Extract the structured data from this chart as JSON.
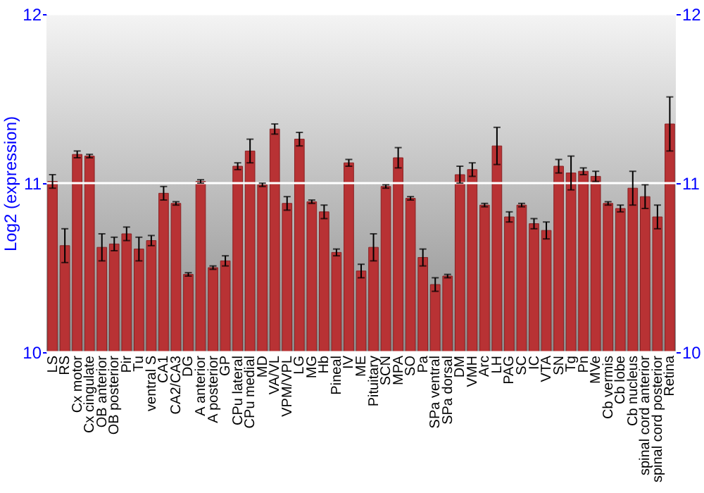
{
  "chart_data": {
    "type": "bar",
    "ylabel": "Log2 (expression)",
    "categories": [
      "LS",
      "RS",
      "Cx motor",
      "Cx cingulate",
      "OB anterior",
      "OB posterior",
      "Pir",
      "Tu",
      "ventral S",
      "CA1",
      "CA2/CA3",
      "DG",
      "A anterior",
      "A posterior",
      "GP",
      "CPu lateral",
      "CPu medial",
      "MD",
      "VA/VL",
      "VPM/VPL",
      "LG",
      "MG",
      "Hb",
      "Pineal",
      "IV",
      "ME",
      "Pituitary",
      "SCN",
      "MPA",
      "SO",
      "Pa",
      "SPa ventral",
      "SPa dorsal",
      "DM",
      "VMH",
      "Arc",
      "LH",
      "PAG",
      "SC",
      "IC",
      "VTA",
      "SN",
      "Tg",
      "Pn",
      "MVe",
      "Cb vermis",
      "Cb lobe",
      "Cb nucleus",
      "spinal cord anterior",
      "spinal cord posterior",
      "Retina"
    ],
    "values": [
      11.01,
      10.63,
      11.17,
      11.16,
      10.62,
      10.64,
      10.7,
      10.61,
      10.66,
      10.94,
      10.88,
      10.46,
      11.01,
      10.5,
      10.54,
      11.1,
      11.19,
      10.99,
      11.32,
      10.88,
      11.26,
      10.89,
      10.83,
      10.59,
      11.12,
      10.48,
      10.62,
      10.98,
      11.15,
      10.91,
      10.56,
      10.4,
      10.45,
      11.05,
      11.08,
      10.87,
      11.22,
      10.8,
      10.87,
      10.76,
      10.72,
      11.1,
      11.06,
      11.07,
      11.04,
      10.88,
      10.85,
      10.97,
      10.92,
      10.8,
      11.35
    ],
    "errors": [
      0.04,
      0.1,
      0.02,
      0.01,
      0.08,
      0.04,
      0.04,
      0.07,
      0.03,
      0.04,
      0.01,
      0.01,
      0.01,
      0.01,
      0.03,
      0.02,
      0.07,
      0.01,
      0.03,
      0.04,
      0.04,
      0.01,
      0.04,
      0.02,
      0.02,
      0.04,
      0.08,
      0.01,
      0.06,
      0.01,
      0.05,
      0.04,
      0.01,
      0.05,
      0.04,
      0.01,
      0.11,
      0.03,
      0.01,
      0.03,
      0.05,
      0.04,
      0.1,
      0.02,
      0.03,
      0.01,
      0.02,
      0.1,
      0.07,
      0.07,
      0.16
    ],
    "color": "#b83234",
    "ylim": [
      10,
      12
    ],
    "yticks": [
      10,
      11,
      12
    ],
    "y2lim": [
      10,
      12
    ],
    "y2ticks": [
      10,
      11,
      12
    ],
    "grid": "y"
  }
}
